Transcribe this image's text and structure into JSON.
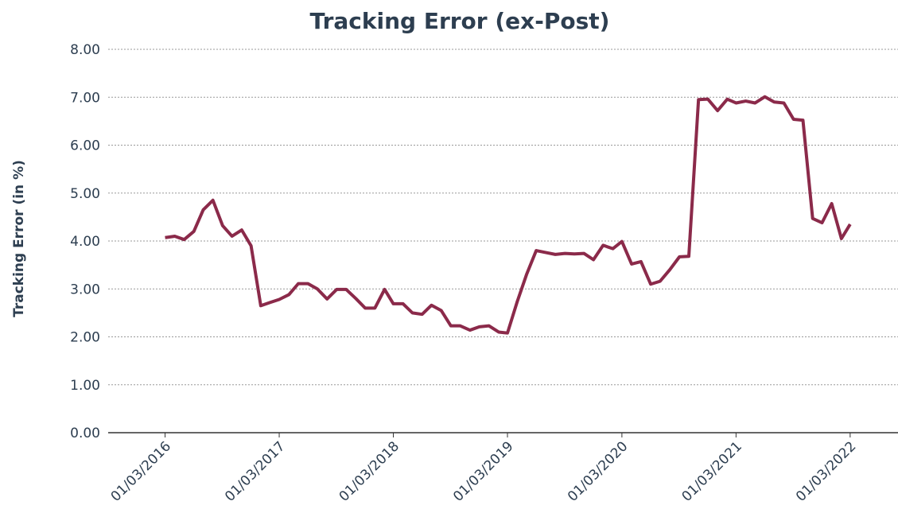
{
  "chart_data": {
    "type": "line",
    "title": "Tracking Error (ex-Post)",
    "y_label": "Tracking Error (in %)",
    "x": [
      "01/03/2016",
      "01/04/2016",
      "01/05/2016",
      "01/06/2016",
      "01/07/2016",
      "01/08/2016",
      "01/09/2016",
      "01/10/2016",
      "01/11/2016",
      "01/12/2016",
      "01/01/2017",
      "01/02/2017",
      "01/03/2017",
      "01/04/2017",
      "01/05/2017",
      "01/06/2017",
      "01/07/2017",
      "01/08/2017",
      "01/09/2017",
      "01/10/2017",
      "01/11/2017",
      "01/12/2017",
      "01/01/2018",
      "01/02/2018",
      "01/03/2018",
      "01/04/2018",
      "01/05/2018",
      "01/06/2018",
      "01/07/2018",
      "01/08/2018",
      "01/09/2018",
      "01/10/2018",
      "01/11/2018",
      "01/12/2018",
      "01/01/2019",
      "01/02/2019",
      "01/03/2019",
      "01/04/2019",
      "01/05/2019",
      "01/06/2019",
      "01/07/2019",
      "01/08/2019",
      "01/09/2019",
      "01/10/2019",
      "01/11/2019",
      "01/12/2019",
      "01/01/2020",
      "01/02/2020",
      "01/03/2020",
      "01/04/2020",
      "01/05/2020",
      "01/06/2020",
      "01/07/2020",
      "01/08/2020",
      "01/09/2020",
      "01/10/2020",
      "01/11/2020",
      "01/12/2020",
      "01/01/2021",
      "01/02/2021",
      "01/03/2021",
      "01/04/2021",
      "01/05/2021",
      "01/06/2021",
      "01/07/2021",
      "01/08/2021",
      "01/09/2021",
      "01/10/2021",
      "01/11/2021",
      "01/12/2021",
      "01/01/2022",
      "01/02/2022",
      "01/03/2022"
    ],
    "series": [
      {
        "name": "Tracking Error",
        "color": "#8b2a4a",
        "values": [
          4.07,
          4.1,
          4.03,
          4.2,
          4.65,
          4.85,
          4.32,
          4.1,
          4.23,
          3.9,
          2.65,
          2.72,
          2.78,
          2.88,
          3.11,
          3.11,
          3.0,
          2.79,
          2.99,
          2.99,
          2.8,
          2.6,
          2.6,
          2.99,
          2.69,
          2.69,
          2.5,
          2.47,
          2.66,
          2.55,
          2.23,
          2.23,
          2.14,
          2.21,
          2.23,
          2.1,
          2.08,
          2.73,
          3.3,
          3.8,
          3.76,
          3.72,
          3.74,
          3.73,
          3.74,
          3.61,
          3.91,
          3.84,
          3.99,
          3.52,
          3.57,
          3.1,
          3.16,
          3.4,
          3.67,
          3.68,
          6.95,
          6.96,
          6.72,
          6.96,
          6.88,
          6.92,
          6.88,
          7.01,
          6.9,
          6.88,
          6.54,
          6.52,
          4.47,
          4.38,
          4.78,
          4.05,
          4.35
        ]
      }
    ],
    "xlim": [
      "01/09/2015",
      "01/08/2022"
    ],
    "xticks": [
      "01/03/2016",
      "01/03/2017",
      "01/03/2018",
      "01/03/2019",
      "01/03/2020",
      "01/03/2021",
      "01/03/2022"
    ],
    "ylim": [
      0,
      8
    ],
    "yticks": [
      {
        "value": 0,
        "label": "0.00"
      },
      {
        "value": 1,
        "label": "1.00"
      },
      {
        "value": 2,
        "label": "2.00"
      },
      {
        "value": 3,
        "label": "3.00"
      },
      {
        "value": 4,
        "label": "4.00"
      },
      {
        "value": 5,
        "label": "5.00"
      },
      {
        "value": 6,
        "label": "6.00"
      },
      {
        "value": 7,
        "label": "7.00"
      },
      {
        "value": 8,
        "label": "8.00"
      }
    ],
    "grid": true
  }
}
